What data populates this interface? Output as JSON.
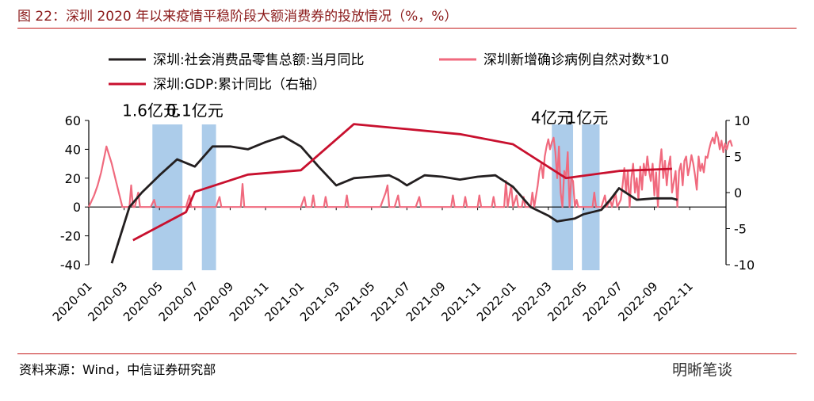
{
  "header": {
    "title": "图 22：深圳 2020 年以来疫情平稳阶段大额消费券的投放情况（%，%）"
  },
  "footer": {
    "source": "资料来源：Wind，中信证券研究部",
    "watermark": "明晰笔谈"
  },
  "chart_data": {
    "type": "line",
    "legend": [
      {
        "name": "深圳:社会消费品零售总额:当月同比",
        "color": "#231f20"
      },
      {
        "name": "深圳新增确诊病例自然对数*10",
        "color": "#f06a7e"
      },
      {
        "name": "深圳:GDP:累计同比（右轴）",
        "color": "#c8102e"
      }
    ],
    "left_axis": {
      "min": -40,
      "max": 60,
      "ticks": [
        -40,
        -20,
        0,
        20,
        40,
        60
      ]
    },
    "right_axis": {
      "min": -10,
      "max": 10,
      "ticks": [
        -10,
        -5,
        0,
        5,
        10
      ]
    },
    "x_ticks": [
      "2020-01",
      "2020-03",
      "2020-05",
      "2020-07",
      "2020-09",
      "2020-11",
      "2021-01",
      "2021-03",
      "2021-05",
      "2021-07",
      "2021-09",
      "2021-11",
      "2022-01",
      "2022-03",
      "2022-05",
      "2022-07",
      "2022-09",
      "2022-11"
    ],
    "annotations": [
      {
        "text": "1.6亿元",
        "month": 3.5,
        "value": 63
      },
      {
        "text": "0.1亿元",
        "month": 6.0,
        "value": 63
      },
      {
        "text": "4亿元",
        "month": 26.2,
        "value": 58
      },
      {
        "text": "1亿元",
        "month": 28.2,
        "value": 58
      }
    ],
    "shaded_periods": [
      {
        "from": 3.6,
        "to": 5.3
      },
      {
        "from": 6.4,
        "to": 7.2
      },
      {
        "from": 26.2,
        "to": 27.4
      },
      {
        "from": 27.9,
        "to": 28.9
      }
    ],
    "series": [
      {
        "name": "深圳:社会消费品零售总额:当月同比",
        "axis": "left",
        "color": "#231f20",
        "points": [
          [
            1.3,
            -39
          ],
          [
            2.3,
            0
          ],
          [
            3.0,
            10
          ],
          [
            4.0,
            22
          ],
          [
            5.0,
            33
          ],
          [
            6.0,
            28
          ],
          [
            7.0,
            42
          ],
          [
            8.0,
            42
          ],
          [
            9.0,
            40
          ],
          [
            10.0,
            45
          ],
          [
            11.0,
            49
          ],
          [
            12.0,
            42
          ],
          [
            13.0,
            28
          ],
          [
            14.0,
            15
          ],
          [
            15.0,
            20
          ],
          [
            16.0,
            21
          ],
          [
            17.0,
            22
          ],
          [
            17.5,
            19
          ],
          [
            18.0,
            15
          ],
          [
            19.0,
            22
          ],
          [
            20.0,
            21
          ],
          [
            21.0,
            19
          ],
          [
            22.0,
            21
          ],
          [
            23.0,
            22
          ],
          [
            24.0,
            14
          ],
          [
            25.0,
            0
          ],
          [
            26.0,
            -6
          ],
          [
            26.5,
            -10
          ],
          [
            27.5,
            -8
          ],
          [
            28.0,
            -5
          ],
          [
            29.0,
            -2
          ],
          [
            29.5,
            5
          ],
          [
            30.0,
            13
          ],
          [
            31.0,
            5
          ],
          [
            32.0,
            6
          ],
          [
            33.0,
            6
          ],
          [
            33.3,
            5
          ]
        ]
      },
      {
        "name": "深圳:GDP:累计同比（右轴）",
        "axis": "right",
        "color": "#c8102e",
        "points": [
          [
            2.5,
            -6.6
          ],
          [
            5.5,
            -2.7
          ],
          [
            6.0,
            0.1
          ],
          [
            9.0,
            2.5
          ],
          [
            12.0,
            3.1
          ],
          [
            15.0,
            9.5
          ],
          [
            18.0,
            8.8
          ],
          [
            21.0,
            8.1
          ],
          [
            24.0,
            6.7
          ],
          [
            27.0,
            2.0
          ],
          [
            30.0,
            3.0
          ],
          [
            33.0,
            3.3
          ]
        ]
      },
      {
        "name": "深圳新增确诊病例自然对数*10",
        "axis": "left",
        "color": "#f06a7e",
        "points": [
          [
            0.0,
            0
          ],
          [
            0.3,
            8
          ],
          [
            0.5,
            15
          ],
          [
            0.7,
            24
          ],
          [
            0.9,
            36
          ],
          [
            1.0,
            42
          ],
          [
            1.1,
            38
          ],
          [
            1.3,
            30
          ],
          [
            1.5,
            20
          ],
          [
            1.7,
            10
          ],
          [
            1.9,
            0
          ],
          [
            2.0,
            0
          ],
          [
            2.3,
            0
          ],
          [
            2.4,
            15
          ],
          [
            2.5,
            0
          ],
          [
            2.6,
            0
          ],
          [
            2.8,
            10
          ],
          [
            2.9,
            0
          ],
          [
            3.5,
            0
          ],
          [
            3.7,
            5
          ],
          [
            3.8,
            0
          ],
          [
            5.5,
            0
          ],
          [
            5.7,
            8
          ],
          [
            5.8,
            0
          ],
          [
            7.0,
            0
          ],
          [
            7.2,
            0
          ],
          [
            7.4,
            7
          ],
          [
            7.5,
            0
          ],
          [
            8.6,
            0
          ],
          [
            8.7,
            16
          ],
          [
            8.8,
            0
          ],
          [
            12.0,
            0
          ],
          [
            12.2,
            7
          ],
          [
            12.3,
            0
          ],
          [
            12.6,
            0
          ],
          [
            12.7,
            8
          ],
          [
            12.8,
            0
          ],
          [
            13.3,
            0
          ],
          [
            13.4,
            7
          ],
          [
            13.5,
            0
          ],
          [
            14.5,
            0
          ],
          [
            14.6,
            8
          ],
          [
            14.7,
            0
          ],
          [
            16.5,
            0
          ],
          [
            16.8,
            10
          ],
          [
            16.9,
            15
          ],
          [
            17.0,
            0
          ],
          [
            17.3,
            0
          ],
          [
            17.5,
            8
          ],
          [
            17.6,
            0
          ],
          [
            18.5,
            0
          ],
          [
            18.7,
            7
          ],
          [
            18.8,
            0
          ],
          [
            20.5,
            0
          ],
          [
            20.6,
            8
          ],
          [
            20.7,
            0
          ],
          [
            21.2,
            0
          ],
          [
            21.3,
            7
          ],
          [
            21.4,
            0
          ],
          [
            22.0,
            0
          ],
          [
            22.1,
            8
          ],
          [
            22.2,
            0
          ],
          [
            22.8,
            0
          ],
          [
            22.9,
            7
          ],
          [
            23.0,
            0
          ],
          [
            23.5,
            0
          ],
          [
            23.6,
            18
          ],
          [
            23.7,
            0
          ],
          [
            23.9,
            15
          ],
          [
            24.0,
            0
          ],
          [
            24.2,
            8
          ],
          [
            24.3,
            0
          ],
          [
            24.5,
            0
          ],
          [
            24.6,
            7
          ],
          [
            24.7,
            0
          ],
          [
            25.0,
            0
          ],
          [
            25.1,
            10
          ],
          [
            25.2,
            0
          ],
          [
            25.4,
            15
          ],
          [
            25.5,
            25
          ],
          [
            25.6,
            30
          ],
          [
            25.7,
            20
          ],
          [
            25.8,
            35
          ],
          [
            25.9,
            42
          ],
          [
            26.0,
            47
          ],
          [
            26.1,
            40
          ],
          [
            26.2,
            45
          ],
          [
            26.3,
            48
          ],
          [
            26.4,
            38
          ],
          [
            26.5,
            20
          ],
          [
            26.6,
            42
          ],
          [
            26.7,
            10
          ],
          [
            26.8,
            0
          ],
          [
            26.9,
            25
          ],
          [
            27.0,
            20
          ],
          [
            27.1,
            38
          ],
          [
            27.2,
            0
          ],
          [
            27.3,
            20
          ],
          [
            27.4,
            18
          ],
          [
            27.5,
            0
          ],
          [
            27.6,
            5
          ],
          [
            27.7,
            0
          ],
          [
            28.0,
            0
          ],
          [
            28.5,
            0
          ],
          [
            28.6,
            10
          ],
          [
            28.7,
            0
          ],
          [
            29.0,
            0
          ],
          [
            29.2,
            8
          ],
          [
            29.3,
            0
          ],
          [
            29.5,
            5
          ],
          [
            29.6,
            0
          ],
          [
            29.8,
            10
          ],
          [
            29.9,
            0
          ],
          [
            30.1,
            5
          ],
          [
            30.2,
            15
          ],
          [
            30.3,
            27
          ],
          [
            30.4,
            10
          ],
          [
            30.5,
            25
          ],
          [
            30.6,
            0
          ],
          [
            30.7,
            20
          ],
          [
            30.8,
            30
          ],
          [
            30.9,
            10
          ],
          [
            31.0,
            20
          ],
          [
            31.1,
            5
          ],
          [
            31.2,
            28
          ],
          [
            31.3,
            12
          ],
          [
            31.4,
            30
          ],
          [
            31.5,
            22
          ],
          [
            31.6,
            35
          ],
          [
            31.7,
            25
          ],
          [
            31.8,
            18
          ],
          [
            31.9,
            30
          ],
          [
            32.0,
            8
          ],
          [
            32.1,
            24
          ],
          [
            32.2,
            0
          ],
          [
            32.3,
            28
          ],
          [
            32.4,
            40
          ],
          [
            32.5,
            20
          ],
          [
            32.6,
            32
          ],
          [
            32.7,
            15
          ],
          [
            32.8,
            28
          ],
          [
            32.9,
            35
          ],
          [
            33.0,
            10
          ],
          [
            33.2,
            25
          ],
          [
            33.3,
            0
          ],
          [
            33.4,
            25
          ],
          [
            33.5,
            30
          ],
          [
            33.6,
            15
          ],
          [
            33.7,
            32
          ],
          [
            33.8,
            35
          ],
          [
            33.9,
            22
          ],
          [
            34.0,
            28
          ],
          [
            34.1,
            36
          ],
          [
            34.2,
            30
          ],
          [
            34.3,
            22
          ],
          [
            34.4,
            12
          ],
          [
            34.5,
            35
          ],
          [
            34.6,
            25
          ],
          [
            34.7,
            30
          ],
          [
            34.8,
            24
          ],
          [
            34.9,
            35
          ],
          [
            35.0,
            34
          ],
          [
            35.1,
            40
          ],
          [
            35.2,
            45
          ],
          [
            35.3,
            48
          ],
          [
            35.4,
            44
          ],
          [
            35.5,
            52
          ],
          [
            35.6,
            48
          ],
          [
            35.7,
            40
          ],
          [
            35.8,
            46
          ],
          [
            35.9,
            38
          ],
          [
            36.0,
            44
          ],
          [
            36.1,
            40
          ],
          [
            36.2,
            45
          ],
          [
            36.3,
            46
          ],
          [
            36.4,
            42
          ]
        ]
      }
    ]
  }
}
